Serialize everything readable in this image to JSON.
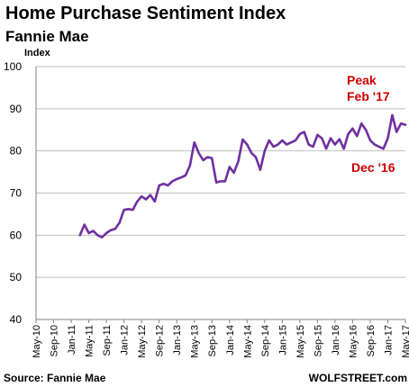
{
  "chart_data": {
    "type": "line",
    "title": "Home Purchase Sentiment Index",
    "subtitle": "Fannie Mae",
    "ylabel": "Index",
    "xlabel": "",
    "ylim": [
      40,
      100
    ],
    "yticks": [
      40,
      50,
      60,
      70,
      80,
      90,
      100
    ],
    "grid": true,
    "line_color": "#7030a0",
    "annotation_color": "#cc0000",
    "x_tick_labels": [
      "May-10",
      "Sep-10",
      "Jan-11",
      "May-11",
      "Sep-11",
      "Jan-12",
      "May-12",
      "Sep-12",
      "Jan-13",
      "May-13",
      "Sep-13",
      "Jan-14",
      "May-14",
      "Sep-14",
      "Jan-15",
      "May-15",
      "Sep-15",
      "Jan-16",
      "May-16",
      "Sep-16",
      "Jan-17",
      "May-17"
    ],
    "x_start": "May-10",
    "x_end": "May-17",
    "series": [
      {
        "values": [
          [
            "Mar-11",
            60.0
          ],
          [
            "Apr-11",
            62.5
          ],
          [
            "May-11",
            60.5
          ],
          [
            "Jun-11",
            61.0
          ],
          [
            "Jul-11",
            60.0
          ],
          [
            "Aug-11",
            59.5
          ],
          [
            "Sep-11",
            60.5
          ],
          [
            "Oct-11",
            61.2
          ],
          [
            "Nov-11",
            61.5
          ],
          [
            "Dec-11",
            63.0
          ],
          [
            "Jan-12",
            66.0
          ],
          [
            "Feb-12",
            66.2
          ],
          [
            "Mar-12",
            66.0
          ],
          [
            "Apr-12",
            68.0
          ],
          [
            "May-12",
            69.2
          ],
          [
            "Jun-12",
            68.5
          ],
          [
            "Jul-12",
            69.5
          ],
          [
            "Aug-12",
            68.0
          ],
          [
            "Sep-12",
            71.8
          ],
          [
            "Oct-12",
            72.2
          ],
          [
            "Nov-12",
            71.8
          ],
          [
            "Dec-12",
            72.8
          ],
          [
            "Jan-13",
            73.3
          ],
          [
            "Feb-13",
            73.7
          ],
          [
            "Mar-13",
            74.2
          ],
          [
            "Apr-13",
            76.5
          ],
          [
            "May-13",
            82.0
          ],
          [
            "Jun-13",
            79.5
          ],
          [
            "Jul-13",
            77.8
          ],
          [
            "Aug-13",
            78.5
          ],
          [
            "Sep-13",
            78.3
          ],
          [
            "Oct-13",
            72.5
          ],
          [
            "Nov-13",
            72.8
          ],
          [
            "Dec-13",
            72.8
          ],
          [
            "Jan-14",
            76.2
          ],
          [
            "Feb-14",
            74.8
          ],
          [
            "Mar-14",
            77.5
          ],
          [
            "Apr-14",
            82.7
          ],
          [
            "May-14",
            81.5
          ],
          [
            "Jun-14",
            79.5
          ],
          [
            "Jul-14",
            78.5
          ],
          [
            "Aug-14",
            75.5
          ],
          [
            "Sep-14",
            80.0
          ],
          [
            "Oct-14",
            82.5
          ],
          [
            "Nov-14",
            81.0
          ],
          [
            "Dec-14",
            81.5
          ],
          [
            "Jan-15",
            82.5
          ],
          [
            "Feb-15",
            81.5
          ],
          [
            "Mar-15",
            82.0
          ],
          [
            "Apr-15",
            82.5
          ],
          [
            "May-15",
            84.0
          ],
          [
            "Jun-15",
            84.5
          ],
          [
            "Jul-15",
            81.5
          ],
          [
            "Aug-15",
            81.0
          ],
          [
            "Sep-15",
            83.8
          ],
          [
            "Oct-15",
            83.0
          ],
          [
            "Nov-15",
            80.5
          ],
          [
            "Dec-15",
            83.0
          ],
          [
            "Jan-16",
            81.5
          ],
          [
            "Feb-16",
            82.8
          ],
          [
            "Mar-16",
            80.5
          ],
          [
            "Apr-16",
            84.0
          ],
          [
            "May-16",
            85.3
          ],
          [
            "Jun-16",
            83.5
          ],
          [
            "Jul-16",
            86.5
          ],
          [
            "Aug-16",
            85.0
          ],
          [
            "Sep-16",
            82.5
          ],
          [
            "Oct-16",
            81.5
          ],
          [
            "Nov-16",
            81.0
          ],
          [
            "Dec-16",
            80.5
          ],
          [
            "Jan-17",
            83.0
          ],
          [
            "Feb-17",
            88.5
          ],
          [
            "Mar-17",
            84.5
          ],
          [
            "Apr-17",
            86.5
          ],
          [
            "May-17",
            86.2
          ]
        ]
      }
    ],
    "annotations": [
      {
        "line1": "Peak",
        "line2": "Feb '17",
        "at": "Feb-17"
      },
      {
        "line1": "Dec '16",
        "at": "Dec-16"
      }
    ]
  },
  "footer": {
    "source": "Source: Fannie Mae",
    "brand": "WOLFSTREET.com"
  }
}
